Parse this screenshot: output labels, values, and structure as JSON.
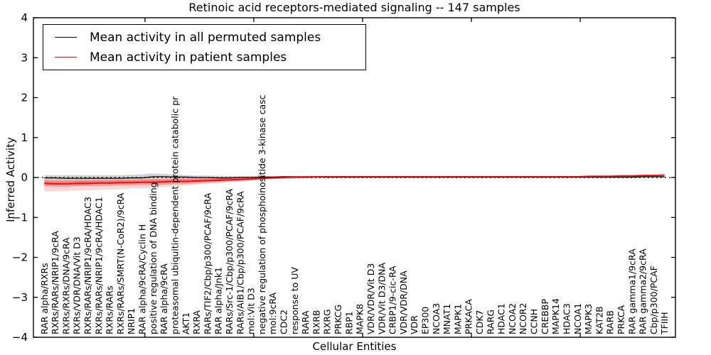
{
  "chart_data": {
    "type": "line",
    "title": "Retinoic acid receptors-mediated signaling -- 147 samples",
    "xlabel": "Cellular Entities",
    "ylabel": "Inferred Activity",
    "ylim": [
      -4,
      4
    ],
    "yticks": [
      -4,
      -3,
      -2,
      -1,
      0,
      1,
      2,
      3,
      4
    ],
    "xlim": [
      -1,
      58
    ],
    "grid": false,
    "legend_position": "upper left",
    "zero_line": {
      "value": 0,
      "style": "dotted",
      "color": "#000000"
    },
    "categories": [
      "RAR alpha/RXRs",
      "RXRs/RARs/NRIP1/9cRA",
      "RXRs/RXRs/DNA/9cRA",
      "RXRs/VDR/DNA/Vit D3",
      "RXRs/RARs/NRIP1/9cRA/HDAC3",
      "RXRs/RARs/NRIP1/9cRA/HDAC1",
      "RXRs/RARs",
      "RXRs/RARs/SMRT(N-CoR2)/9cRA",
      "NRIP1",
      "RAR alpha/9cRA/Cyclin H",
      "positive regulation of DNA binding",
      "RAR alpha/9cRA",
      "proteasomal ubiquitin-dependent protein catabolic pr",
      "AKT1",
      "RXRA",
      "RARs/TIF2/Cbp/p300/PCAF/9cRA",
      "RAR alpha/Jnk1",
      "RARs/Src-1/Cbp/p300/PCAF/9cRA",
      "RARs/AIB1/Cbp/p300/PCAF/9cRA",
      "mol:Vit D3",
      "negative regulation of phosphoinositide 3-kinase casc",
      "mol:9cRA",
      "CDC2",
      "response to UV",
      "RARA",
      "RXRB",
      "RXRG",
      "PRKCG",
      "RBP1",
      "MAPK8",
      "VDR/VDR/Vit D3",
      "VDR/Vit D3/DNA",
      "CRBP1/9-cic-RA",
      "VDR/VDR/DNA",
      "VDR",
      "EP300",
      "NCOA3",
      "MNAT1",
      "MAPK1",
      "PRKACA",
      "CDK7",
      "RARG",
      "HDAC1",
      "NCOA2",
      "NCOR2",
      "CCNH",
      "CREBBP",
      "MAPK14",
      "HDAC3",
      "NCOA1",
      "MAPK3",
      "KAT2B",
      "RARB",
      "PRKCA",
      "RAR gamma1/9cRA",
      "RAR gamma2/9cRA",
      "Cbp/p300/PCAF",
      "TFIIH"
    ],
    "series": [
      {
        "name": "Mean activity in all permuted samples",
        "color": "#000000",
        "line_width": 1.3,
        "values": [
          -0.01,
          -0.01,
          -0.02,
          -0.02,
          -0.02,
          -0.02,
          -0.02,
          -0.02,
          -0.01,
          -0.01,
          0.02,
          0.02,
          0.01,
          0.01,
          0,
          0,
          -0.01,
          -0.01,
          0,
          0,
          0.01,
          0.01,
          0.02,
          0.02,
          0.02,
          0.02,
          0.01,
          0.01,
          0.01,
          0.01,
          0.01,
          0.01,
          0.01,
          0.01,
          0.01,
          0.01,
          0.01,
          0.01,
          0.01,
          0.01,
          0.01,
          0.01,
          0.01,
          0.01,
          0.01,
          0.01,
          0.01,
          0.01,
          0.01,
          0.01,
          0.01,
          0.01,
          0.01,
          0.01,
          0.01,
          0.02,
          0.02,
          0.02
        ],
        "bands": [
          {
            "color": "#999999",
            "opacity": 0.45,
            "upper": [
              0.06,
              0.06,
              0.06,
              0.06,
              0.06,
              0.06,
              0.06,
              0.06,
              0.07,
              0.08,
              0.1,
              0.09,
              0.07,
              0.06,
              0.05,
              0.05,
              0.04,
              0.04,
              0.04,
              0.04,
              0.03,
              0.03,
              0.03,
              0.03,
              0.03,
              0.03,
              0.03,
              0.03,
              0.03,
              0.03,
              0.03,
              0.03,
              0.03,
              0.03,
              0.03,
              0.03,
              0.03,
              0.03,
              0.03,
              0.03,
              0.03,
              0.03,
              0.03,
              0.03,
              0.03,
              0.03,
              0.03,
              0.03,
              0.03,
              0.03,
              0.03,
              0.03,
              0.03,
              0.03,
              0.03,
              0.04,
              0.04,
              0.04
            ],
            "lower": [
              -0.15,
              -0.15,
              -0.14,
              -0.14,
              -0.14,
              -0.13,
              -0.13,
              -0.12,
              -0.12,
              -0.12,
              -0.12,
              -0.11,
              -0.1,
              -0.09,
              -0.08,
              -0.07,
              -0.06,
              -0.06,
              -0.05,
              -0.05,
              -0.04,
              -0.03,
              -0.03,
              -0.02,
              -0.02,
              -0.02,
              -0.02,
              -0.02,
              -0.02,
              -0.02,
              -0.02,
              -0.02,
              -0.02,
              -0.02,
              -0.02,
              -0.02,
              -0.02,
              -0.02,
              -0.02,
              -0.02,
              -0.02,
              -0.02,
              -0.02,
              -0.02,
              -0.02,
              -0.02,
              -0.02,
              -0.02,
              -0.02,
              -0.02,
              -0.02,
              -0.02,
              -0.02,
              -0.02,
              -0.02,
              -0.01,
              -0.01,
              -0.01
            ]
          }
        ]
      },
      {
        "name": "Mean activity in patient samples",
        "color": "#ff0000",
        "line_width": 1.8,
        "values": [
          -0.15,
          -0.16,
          -0.16,
          -0.15,
          -0.15,
          -0.14,
          -0.14,
          -0.13,
          -0.13,
          -0.12,
          -0.12,
          -0.11,
          -0.1,
          -0.1,
          -0.09,
          -0.08,
          -0.07,
          -0.06,
          -0.05,
          -0.04,
          -0.02,
          -0.01,
          0,
          0.01,
          0.01,
          0.02,
          0.02,
          0.02,
          0.02,
          0.02,
          0.02,
          0.02,
          0.02,
          0.02,
          0.02,
          0.02,
          0.02,
          0.02,
          0.02,
          0.02,
          0.02,
          0.02,
          0.02,
          0.02,
          0.02,
          0.02,
          0.02,
          0.02,
          0.02,
          0.02,
          0.03,
          0.03,
          0.03,
          0.04,
          0.04,
          0.05,
          0.05,
          0.06
        ],
        "bands": [
          {
            "color": "#ff0000",
            "opacity": 0.16,
            "upper": [
              -0.05,
              -0.06,
              -0.06,
              -0.05,
              -0.05,
              -0.05,
              -0.05,
              -0.05,
              -0.05,
              -0.04,
              -0.04,
              -0.04,
              -0.03,
              -0.03,
              -0.03,
              -0.02,
              -0.02,
              -0.01,
              -0.01,
              0,
              0.01,
              0.02,
              0.02,
              0.03,
              0.03,
              0.03,
              0.03,
              0.03,
              0.03,
              0.03,
              0.03,
              0.03,
              0.03,
              0.03,
              0.03,
              0.03,
              0.03,
              0.03,
              0.03,
              0.03,
              0.03,
              0.03,
              0.03,
              0.03,
              0.03,
              0.03,
              0.03,
              0.03,
              0.03,
              0.03,
              0.04,
              0.04,
              0.05,
              0.05,
              0.06,
              0.07,
              0.07,
              0.08
            ],
            "lower": [
              -0.34,
              -0.35,
              -0.34,
              -0.33,
              -0.32,
              -0.31,
              -0.3,
              -0.29,
              -0.28,
              -0.27,
              -0.26,
              -0.24,
              -0.22,
              -0.2,
              -0.18,
              -0.16,
              -0.14,
              -0.12,
              -0.1,
              -0.08,
              -0.06,
              -0.04,
              -0.03,
              -0.02,
              -0.02,
              -0.01,
              -0.01,
              0,
              0,
              0.01,
              0.01,
              0.01,
              0.01,
              0.01,
              0.01,
              0.01,
              0.01,
              0.01,
              0.01,
              0.01,
              0.01,
              0.01,
              0.01,
              0.01,
              0.01,
              0.01,
              0.01,
              0.01,
              0.01,
              0.01,
              0.01,
              0.01,
              0.01,
              0.02,
              0.02,
              0.03,
              0.03,
              0.04
            ]
          },
          {
            "color": "#ff0000",
            "opacity": 0.28,
            "upper": [
              -0.09,
              -0.1,
              -0.1,
              -0.09,
              -0.09,
              -0.08,
              -0.08,
              -0.07,
              -0.07,
              -0.06,
              -0.06,
              -0.05,
              -0.04,
              -0.04,
              -0.03,
              -0.03,
              -0.02,
              -0.01,
              -0.01,
              0,
              0.01,
              0.01,
              0.02,
              0.02,
              0.03,
              0.03,
              0.03,
              0.03,
              0.03,
              0.03,
              0.03,
              0.03,
              0.03,
              0.03,
              0.03,
              0.03,
              0.03,
              0.03,
              0.03,
              0.03,
              0.03,
              0.03,
              0.03,
              0.03,
              0.03,
              0.03,
              0.03,
              0.03,
              0.03,
              0.03,
              0.04,
              0.04,
              0.04,
              0.05,
              0.05,
              0.06,
              0.06,
              0.07
            ],
            "lower": [
              -0.22,
              -0.23,
              -0.23,
              -0.22,
              -0.22,
              -0.21,
              -0.21,
              -0.2,
              -0.2,
              -0.19,
              -0.19,
              -0.18,
              -0.17,
              -0.16,
              -0.15,
              -0.13,
              -0.12,
              -0.1,
              -0.09,
              -0.07,
              -0.05,
              -0.03,
              -0.02,
              -0.01,
              -0.01,
              0,
              0,
              0.01,
              0.01,
              0.01,
              0.01,
              0.01,
              0.01,
              0.01,
              0.01,
              0.01,
              0.01,
              0.01,
              0.01,
              0.01,
              0.01,
              0.01,
              0.01,
              0.01,
              0.01,
              0.01,
              0.01,
              0.01,
              0.01,
              0.01,
              0.02,
              0.02,
              0.02,
              0.03,
              0.03,
              0.04,
              0.04,
              0.05
            ]
          }
        ]
      }
    ]
  }
}
